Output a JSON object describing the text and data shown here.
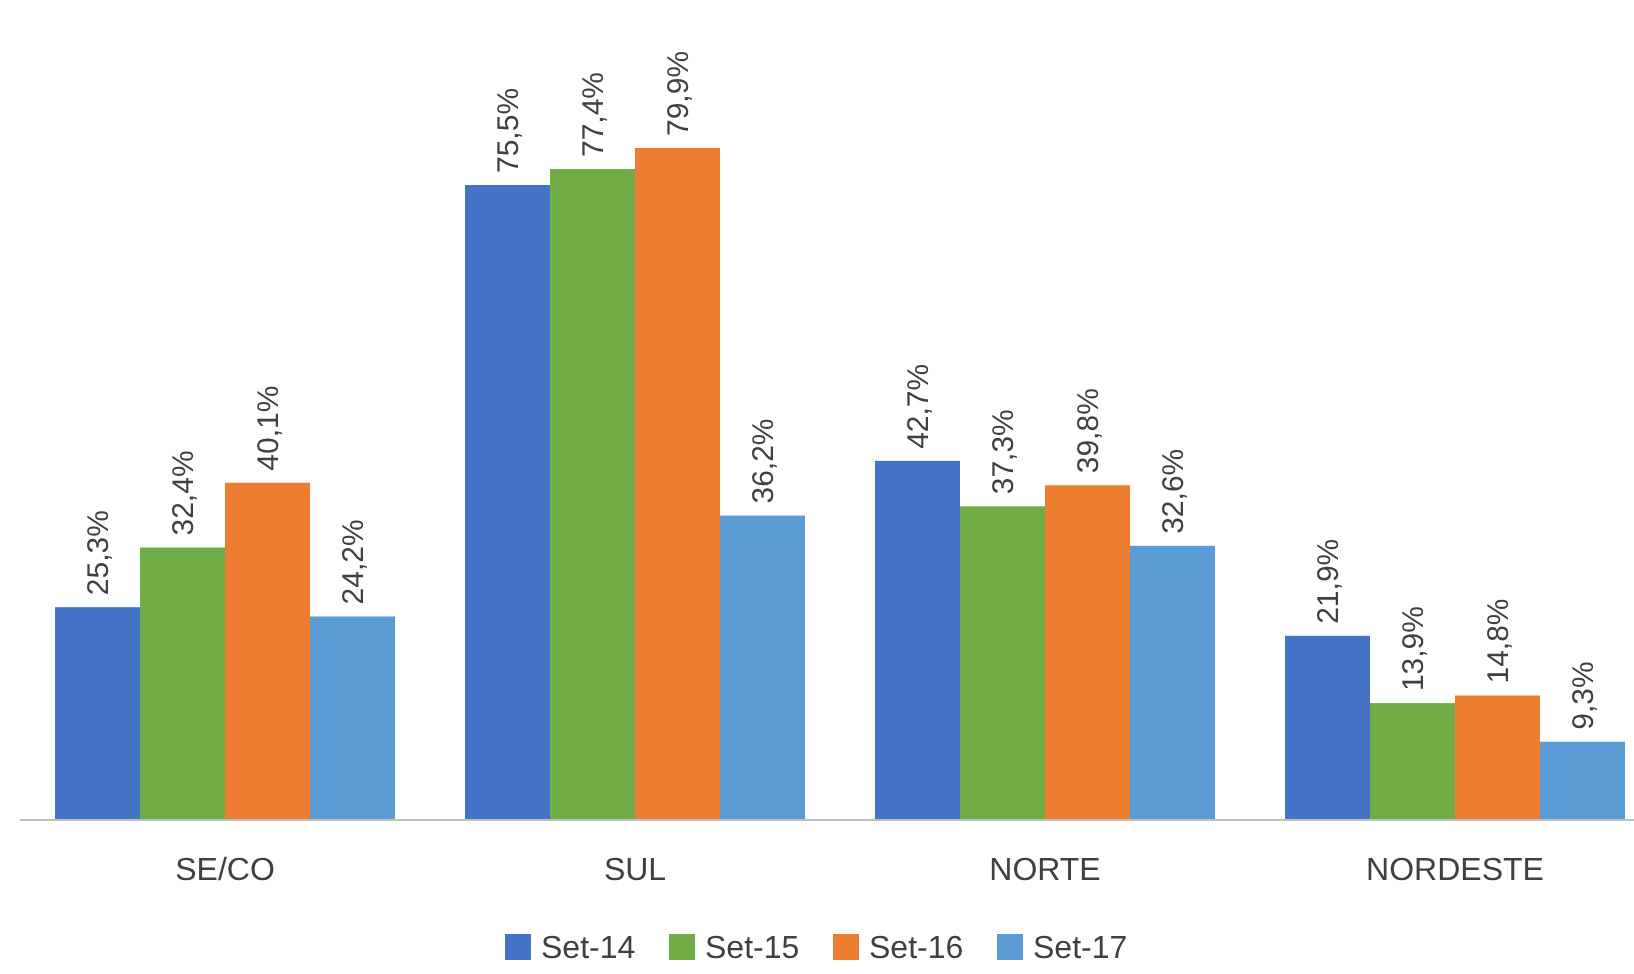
{
  "chart_data": {
    "type": "bar",
    "categories": [
      "SE/CO",
      "SUL",
      "NORTE",
      "NORDESTE"
    ],
    "series": [
      {
        "name": "Set-14",
        "color": "#4472c4",
        "values": [
          25.3,
          75.5,
          42.7,
          21.9
        ],
        "value_labels": [
          "25,3%",
          "75,5%",
          "42,7%",
          "21,9%"
        ]
      },
      {
        "name": "Set-15",
        "color": "#70ad47",
        "values": [
          32.4,
          77.4,
          37.3,
          13.9
        ],
        "value_labels": [
          "32,4%",
          "77,4%",
          "37,3%",
          "13,9%"
        ]
      },
      {
        "name": "Set-16",
        "color": "#ed7d31",
        "values": [
          40.1,
          79.9,
          39.8,
          14.8
        ],
        "value_labels": [
          "40,1%",
          "79,9%",
          "39,8%",
          "14,8%"
        ]
      },
      {
        "name": "Set-17",
        "color": "#5b9bd5",
        "values": [
          24.2,
          36.2,
          32.6,
          9.3
        ],
        "value_labels": [
          "24,2%",
          "36,2%",
          "32,6%",
          "9,3%"
        ]
      }
    ],
    "legend": "bottom",
    "tick_labels": "x"
  }
}
